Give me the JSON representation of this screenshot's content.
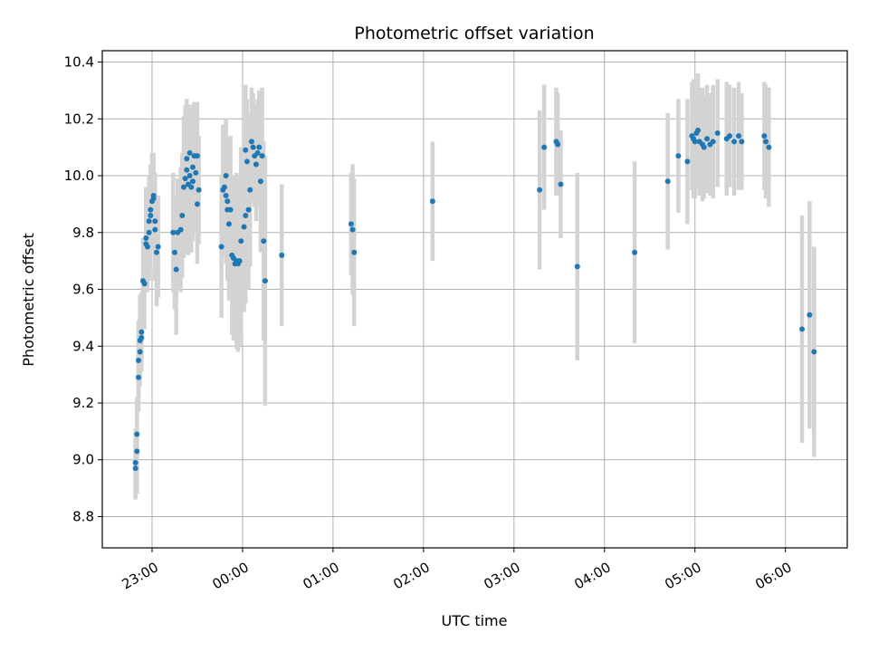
{
  "chart_data": {
    "type": "scatter",
    "title": "Photometric offset variation",
    "xlabel": "UTC time",
    "ylabel": "Photometric offset",
    "x_unit": "UTC time (HH:MM)",
    "xlim": [
      "22:27",
      "06:41"
    ],
    "ylim": [
      8.69,
      10.44
    ],
    "x_ticks": [
      "23:00",
      "00:00",
      "01:00",
      "02:00",
      "03:00",
      "04:00",
      "05:00",
      "06:00"
    ],
    "y_ticks": [
      "8.8",
      "9.0",
      "9.2",
      "9.4",
      "9.6",
      "9.8",
      "10.0",
      "10.2",
      "10.4"
    ],
    "y_tick_values": [
      8.8,
      9.0,
      9.2,
      9.4,
      9.6,
      9.8,
      10.0,
      10.2,
      10.4
    ],
    "grid": true,
    "colors": {
      "marker": "#1f77b4",
      "errorbar": "#d3d3d3",
      "grid": "#b0b0b0"
    },
    "series": [
      {
        "points": [
          {
            "x": "22:49",
            "y": 8.99,
            "err": 0.12
          },
          {
            "x": "22:49",
            "y": 8.97,
            "err": 0.11
          },
          {
            "x": "22:50",
            "y": 9.03,
            "err": 0.15
          },
          {
            "x": "22:50",
            "y": 9.09,
            "err": 0.13
          },
          {
            "x": "22:51",
            "y": 9.29,
            "err": 0.12
          },
          {
            "x": "22:51",
            "y": 9.35,
            "err": 0.14
          },
          {
            "x": "22:52",
            "y": 9.38,
            "err": 0.12
          },
          {
            "x": "22:52",
            "y": 9.42,
            "err": 0.16
          },
          {
            "x": "22:53",
            "y": 9.45,
            "err": 0.14
          },
          {
            "x": "22:53",
            "y": 9.43,
            "err": 0.12
          },
          {
            "x": "22:54",
            "y": 9.63,
            "err": 0.15
          },
          {
            "x": "22:55",
            "y": 9.62,
            "err": 0.16
          },
          {
            "x": "22:56",
            "y": 9.76,
            "err": 0.17
          },
          {
            "x": "22:56",
            "y": 9.78,
            "err": 0.18
          },
          {
            "x": "22:57",
            "y": 9.75,
            "err": 0.16
          },
          {
            "x": "22:58",
            "y": 9.8,
            "err": 0.17
          },
          {
            "x": "22:58",
            "y": 9.84,
            "err": 0.16
          },
          {
            "x": "22:59",
            "y": 9.86,
            "err": 0.18
          },
          {
            "x": "22:59",
            "y": 9.88,
            "err": 0.16
          },
          {
            "x": "23:00",
            "y": 9.91,
            "err": 0.17
          },
          {
            "x": "23:01",
            "y": 9.93,
            "err": 0.15
          },
          {
            "x": "23:01",
            "y": 9.92,
            "err": 0.16
          },
          {
            "x": "23:02",
            "y": 9.84,
            "err": 0.17
          },
          {
            "x": "23:02",
            "y": 9.81,
            "err": 0.18
          },
          {
            "x": "23:03",
            "y": 9.73,
            "err": 0.19
          },
          {
            "x": "23:04",
            "y": 9.75,
            "err": 0.18
          },
          {
            "x": "23:14",
            "y": 9.8,
            "err": 0.21
          },
          {
            "x": "23:15",
            "y": 9.73,
            "err": 0.2
          },
          {
            "x": "23:16",
            "y": 9.67,
            "err": 0.23
          },
          {
            "x": "23:17",
            "y": 9.8,
            "err": 0.19
          },
          {
            "x": "23:19",
            "y": 9.81,
            "err": 0.22
          },
          {
            "x": "23:20",
            "y": 9.86,
            "err": 0.22
          },
          {
            "x": "23:21",
            "y": 9.96,
            "err": 0.25
          },
          {
            "x": "23:22",
            "y": 9.99,
            "err": 0.26
          },
          {
            "x": "23:23",
            "y": 10.06,
            "err": 0.21
          },
          {
            "x": "23:23",
            "y": 10.02,
            "err": 0.23
          },
          {
            "x": "23:24",
            "y": 9.97,
            "err": 0.25
          },
          {
            "x": "23:25",
            "y": 10.08,
            "err": 0.17
          },
          {
            "x": "23:25",
            "y": 10.0,
            "err": 0.25
          },
          {
            "x": "23:26",
            "y": 9.96,
            "err": 0.23
          },
          {
            "x": "23:27",
            "y": 10.03,
            "err": 0.22
          },
          {
            "x": "23:27",
            "y": 9.98,
            "err": 0.21
          },
          {
            "x": "23:28",
            "y": 10.07,
            "err": 0.19
          },
          {
            "x": "23:29",
            "y": 10.01,
            "err": 0.21
          },
          {
            "x": "23:30",
            "y": 10.07,
            "err": 0.19
          },
          {
            "x": "23:30",
            "y": 9.9,
            "err": 0.21
          },
          {
            "x": "23:31",
            "y": 9.95,
            "err": 0.19
          },
          {
            "x": "23:46",
            "y": 9.75,
            "err": 0.25
          },
          {
            "x": "23:47",
            "y": 9.95,
            "err": 0.23
          },
          {
            "x": "23:48",
            "y": 9.96,
            "err": 0.22
          },
          {
            "x": "23:49",
            "y": 10.0,
            "err": 0.2
          },
          {
            "x": "23:49",
            "y": 9.93,
            "err": 0.24
          },
          {
            "x": "23:50",
            "y": 9.88,
            "err": 0.25
          },
          {
            "x": "23:50",
            "y": 9.91,
            "err": 0.22
          },
          {
            "x": "23:51",
            "y": 9.83,
            "err": 0.27
          },
          {
            "x": "23:52",
            "y": 9.88,
            "err": 0.26
          },
          {
            "x": "23:53",
            "y": 9.72,
            "err": 0.28
          },
          {
            "x": "23:54",
            "y": 9.71,
            "err": 0.29
          },
          {
            "x": "23:55",
            "y": 9.69,
            "err": 0.27
          },
          {
            "x": "23:56",
            "y": 9.7,
            "err": 0.31
          },
          {
            "x": "23:57",
            "y": 9.69,
            "err": 0.31
          },
          {
            "x": "23:58",
            "y": 9.7,
            "err": 0.3
          },
          {
            "x": "23:59",
            "y": 9.77,
            "err": 0.33
          },
          {
            "x": "00:01",
            "y": 9.82,
            "err": 0.3
          },
          {
            "x": "00:02",
            "y": 9.86,
            "err": 0.31
          },
          {
            "x": "00:02",
            "y": 10.09,
            "err": 0.23
          },
          {
            "x": "00:03",
            "y": 10.05,
            "err": 0.22
          },
          {
            "x": "00:04",
            "y": 9.88,
            "err": 0.28
          },
          {
            "x": "00:05",
            "y": 9.95,
            "err": 0.27
          },
          {
            "x": "00:06",
            "y": 10.12,
            "err": 0.19
          },
          {
            "x": "00:07",
            "y": 10.1,
            "err": 0.19
          },
          {
            "x": "00:08",
            "y": 10.07,
            "err": 0.18
          },
          {
            "x": "00:09",
            "y": 10.04,
            "err": 0.2
          },
          {
            "x": "00:10",
            "y": 10.08,
            "err": 0.19
          },
          {
            "x": "00:11",
            "y": 10.1,
            "err": 0.2
          },
          {
            "x": "00:12",
            "y": 9.98,
            "err": 0.25
          },
          {
            "x": "00:13",
            "y": 10.07,
            "err": 0.24
          },
          {
            "x": "00:14",
            "y": 9.77,
            "err": 0.35
          },
          {
            "x": "00:15",
            "y": 9.63,
            "err": 0.44
          },
          {
            "x": "00:26",
            "y": 9.72,
            "err": 0.25
          },
          {
            "x": "01:12",
            "y": 9.83,
            "err": 0.18
          },
          {
            "x": "01:13",
            "y": 9.81,
            "err": 0.23
          },
          {
            "x": "01:14",
            "y": 9.73,
            "err": 0.26
          },
          {
            "x": "02:06",
            "y": 9.91,
            "err": 0.21
          },
          {
            "x": "03:17",
            "y": 9.95,
            "err": 0.28
          },
          {
            "x": "03:20",
            "y": 10.1,
            "err": 0.22
          },
          {
            "x": "03:28",
            "y": 10.12,
            "err": 0.19
          },
          {
            "x": "03:29",
            "y": 10.11,
            "err": 0.18
          },
          {
            "x": "03:31",
            "y": 9.97,
            "err": 0.19
          },
          {
            "x": "03:42",
            "y": 9.68,
            "err": 0.33
          },
          {
            "x": "04:20",
            "y": 9.73,
            "err": 0.32
          },
          {
            "x": "04:42",
            "y": 9.98,
            "err": 0.24
          },
          {
            "x": "04:49",
            "y": 10.07,
            "err": 0.2
          },
          {
            "x": "04:55",
            "y": 10.05,
            "err": 0.22
          },
          {
            "x": "04:58",
            "y": 10.14,
            "err": 0.19
          },
          {
            "x": "04:59",
            "y": 10.13,
            "err": 0.21
          },
          {
            "x": "05:00",
            "y": 10.12,
            "err": 0.2
          },
          {
            "x": "05:01",
            "y": 10.15,
            "err": 0.19
          },
          {
            "x": "05:02",
            "y": 10.16,
            "err": 0.2
          },
          {
            "x": "05:03",
            "y": 10.12,
            "err": 0.19
          },
          {
            "x": "05:05",
            "y": 10.11,
            "err": 0.2
          },
          {
            "x": "05:06",
            "y": 10.1,
            "err": 0.18
          },
          {
            "x": "05:08",
            "y": 10.13,
            "err": 0.19
          },
          {
            "x": "05:10",
            "y": 10.11,
            "err": 0.18
          },
          {
            "x": "05:12",
            "y": 10.12,
            "err": 0.2
          },
          {
            "x": "05:15",
            "y": 10.15,
            "err": 0.19
          },
          {
            "x": "05:21",
            "y": 10.13,
            "err": 0.2
          },
          {
            "x": "05:23",
            "y": 10.14,
            "err": 0.18
          },
          {
            "x": "05:26",
            "y": 10.12,
            "err": 0.19
          },
          {
            "x": "05:29",
            "y": 10.14,
            "err": 0.19
          },
          {
            "x": "05:31",
            "y": 10.12,
            "err": 0.17
          },
          {
            "x": "05:46",
            "y": 10.14,
            "err": 0.19
          },
          {
            "x": "05:47",
            "y": 10.12,
            "err": 0.2
          },
          {
            "x": "05:49",
            "y": 10.1,
            "err": 0.21
          },
          {
            "x": "06:11",
            "y": 9.46,
            "err": 0.4
          },
          {
            "x": "06:16",
            "y": 9.51,
            "err": 0.4
          },
          {
            "x": "06:19",
            "y": 9.38,
            "err": 0.37
          }
        ]
      }
    ]
  }
}
